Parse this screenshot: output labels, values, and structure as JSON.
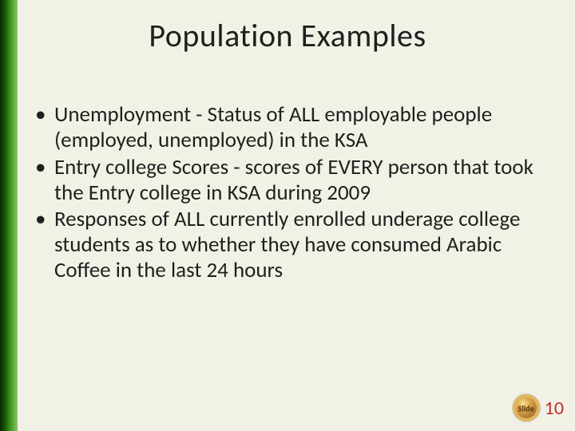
{
  "slide": {
    "title": "Population Examples",
    "title_color": "#1f1f1f",
    "body_color": "#1f1f1f",
    "background_color": "#f1f1e6",
    "sidebar_gradient": [
      "#0a2a00",
      "#1a5a0a",
      "#3a8f1a",
      "#5aa83a",
      "#8cc56a"
    ],
    "bullets": [
      "Unemployment - Status of ALL employable people (employed, unemployed) in the KSA",
      "Entry college Scores - scores of EVERY person that took the Entry college in KSA during 2009",
      "Responses of ALL currently enrolled underage college students as to whether they have consumed Arabic Coffee in the last 24 hours"
    ],
    "footer": {
      "badge_label": "Slide",
      "badge_ring_color": "#e0b75a",
      "badge_text_color": "#6b3f12",
      "page_number": "10",
      "page_number_color": "#c03028"
    }
  }
}
